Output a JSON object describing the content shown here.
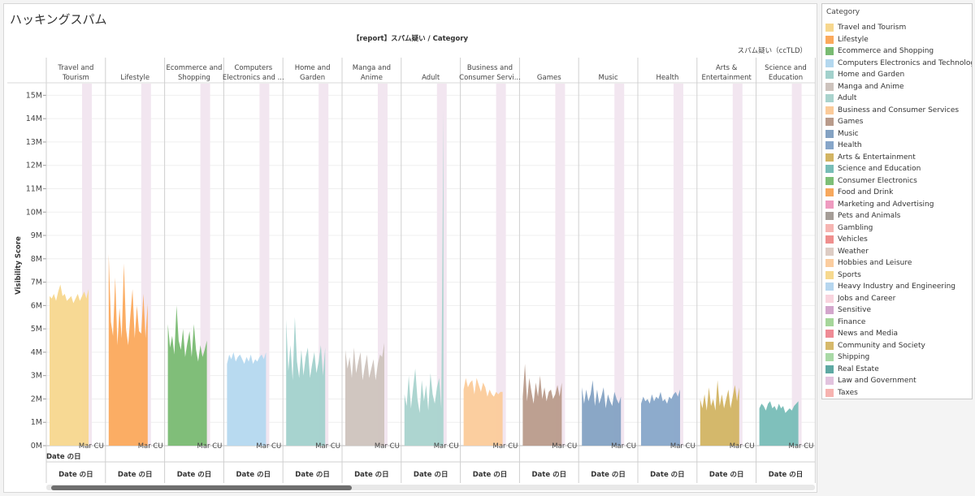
{
  "page": {
    "title": "ハッキングスパム",
    "row_header": "Date の日",
    "legend_title": "Category"
  },
  "colors": {
    "Travel and Tourism": "#f7d78e",
    "Lifestyle": "#fba95c",
    "Ecommerce and Shopping": "#79bb72",
    "Computers Electronics and Technology": "#b4d8ef",
    "Home and Garden": "#a2d1cc",
    "Manga and Anime": "#cdc3bd",
    "Adult": "#a9d3cd",
    "Business and Consumer Services": "#fbcb9a",
    "Games": "#b99b8b",
    "Music": "#84a2c3",
    "Health": "#87a6c9",
    "Arts & Entertainment": "#d2b463",
    "Science and Education": "#78bdb7",
    "Consumer Electronics": "#7ebf77",
    "Food and Drink": "#f7a85d",
    "Marketing and Advertising": "#ef9bc0",
    "Pets and Animals": "#a59d97",
    "Gambling": "#f6b5b2",
    "Vehicles": "#ef8f8e",
    "Weather": "#ddccc4",
    "Hobbies and Leisure": "#fbcd9f",
    "Sports": "#f7d98f",
    "Heavy Industry and Engineering": "#b6d6ef",
    "Jobs and Career": "#f9d4de",
    "Sensitive": "#d3a6cc",
    "Finance": "#a6d69a",
    "News and Media": "#ef8b95",
    "Community and Society": "#d6b96b",
    "Shipping": "#a9d9a6",
    "Real Estate": "#5ea9a3",
    "Law and Government": "#e2c3de",
    "Taxes": "#f7b3b0"
  },
  "legend": [
    "Travel and Tourism",
    "Lifestyle",
    "Ecommerce and Shopping",
    "Computers Electronics and Technology",
    "Home and Garden",
    "Manga and Anime",
    "Adult",
    "Business and Consumer Services",
    "Games",
    "Music",
    "Health",
    "Arts & Entertainment",
    "Science and Education",
    "Consumer Electronics",
    "Food and Drink",
    "Marketing and Advertising",
    "Pets and Animals",
    "Gambling",
    "Vehicles",
    "Weather",
    "Hobbies and Leisure",
    "Sports",
    "Heavy Industry and Engineering",
    "Jobs and Career",
    "Sensitive",
    "Finance",
    "News and Media",
    "Community and Society",
    "Shipping",
    "Real Estate",
    "Law and Government",
    "Taxes"
  ],
  "chart_data": {
    "type": "area",
    "header": "【report】スパム疑い / Category",
    "column_field": "スパム疑い（ccTLD）",
    "ylabel": "Visibility Score",
    "xlabel": "Date の日",
    "ylim": [
      0,
      15500000
    ],
    "y_ticks": [
      "0M",
      "1M",
      "2M",
      "3M",
      "4M",
      "5M",
      "6M",
      "7M",
      "8M",
      "9M",
      "10M",
      "11M",
      "12M",
      "13M",
      "14M",
      "15M"
    ],
    "x_tick_label": "Mar CU",
    "highlight_band_color": "#f2e6f0",
    "panels": [
      {
        "category": "Travel and Tourism",
        "label": [
          "Travel and",
          "Tourism"
        ],
        "values": [
          6.4,
          6.3,
          6.5,
          6.2,
          6.6,
          6.9,
          6.4,
          6.5,
          6.2,
          6.3,
          6.4,
          6.1,
          6.3,
          6.5,
          6.2,
          6.4,
          6.6,
          6.3,
          6.7
        ]
      },
      {
        "category": "Lifestyle",
        "label": [
          "Lifestyle"
        ],
        "values": [
          8.2,
          5.3,
          4.7,
          7.2,
          4.3,
          5.9,
          4.6,
          7.8,
          5.0,
          4.3,
          5.6,
          6.7,
          4.6,
          6.0,
          4.9,
          4.8,
          6.5,
          4.6,
          6.1
        ]
      },
      {
        "category": "Ecommerce and Shopping",
        "label": [
          "Ecommerce and",
          "Shopping"
        ],
        "values": [
          5.2,
          4.2,
          4.7,
          3.9,
          6.0,
          4.5,
          4.1,
          5.0,
          3.8,
          4.4,
          4.9,
          3.8,
          5.2,
          4.1,
          3.6,
          4.3,
          3.8,
          4.1,
          4.5
        ]
      },
      {
        "category": "Computers Electronics and Technology",
        "label": [
          "Computers",
          "Electronics and ..."
        ],
        "values": [
          3.5,
          3.9,
          3.7,
          4.0,
          3.6,
          3.8,
          3.9,
          3.7,
          3.5,
          3.8,
          3.6,
          3.9,
          3.5,
          3.7,
          3.6,
          3.8,
          3.9,
          3.7,
          4.0
        ]
      },
      {
        "category": "Home and Garden",
        "label": [
          "Home and",
          "Garden"
        ],
        "values": [
          5.4,
          3.2,
          4.3,
          2.8,
          5.5,
          3.6,
          2.9,
          4.1,
          3.0,
          3.8,
          4.2,
          2.9,
          3.5,
          4.0,
          3.1,
          3.6,
          4.3,
          3.0,
          4.2
        ]
      },
      {
        "category": "Manga and Anime",
        "label": [
          "Manga and",
          "Anime"
        ],
        "values": [
          4.1,
          3.3,
          3.8,
          2.9,
          4.2,
          3.1,
          3.6,
          4.0,
          2.8,
          3.4,
          3.9,
          2.9,
          3.3,
          3.7,
          2.8,
          3.5,
          3.9,
          3.8,
          4.4
        ]
      },
      {
        "category": "Adult",
        "label": [
          "Adult"
        ],
        "values": [
          2.2,
          1.7,
          3.0,
          1.6,
          2.5,
          3.3,
          2.0,
          1.4,
          2.8,
          1.9,
          2.6,
          1.5,
          3.1,
          2.2,
          1.8,
          2.5,
          2.9,
          1.6,
          14.4
        ]
      },
      {
        "category": "Business and Consumer Services",
        "label": [
          "Business and",
          "Consumer Servi..."
        ],
        "values": [
          2.4,
          2.9,
          2.5,
          2.7,
          2.8,
          2.2,
          2.9,
          2.6,
          2.3,
          2.7,
          2.5,
          2.1,
          2.4,
          2.2,
          2.1,
          2.3,
          2.2,
          2.3,
          2.3
        ]
      },
      {
        "category": "Games",
        "label": [
          "Games"
        ],
        "values": [
          2.1,
          3.5,
          1.9,
          2.9,
          2.3,
          1.8,
          2.7,
          2.1,
          3.0,
          2.0,
          2.5,
          1.9,
          2.3,
          2.4,
          2.0,
          2.2,
          2.6,
          2.1,
          2.7
        ]
      },
      {
        "category": "Music",
        "label": [
          "Music"
        ],
        "values": [
          2.5,
          1.8,
          2.4,
          1.9,
          2.2,
          2.8,
          1.7,
          2.4,
          1.8,
          2.1,
          2.5,
          1.6,
          2.2,
          1.9,
          1.7,
          2.3,
          2.0,
          1.8,
          2.1
        ]
      },
      {
        "category": "Health",
        "label": [
          "Health"
        ],
        "values": [
          1.8,
          2.1,
          1.9,
          2.0,
          1.8,
          2.2,
          1.9,
          2.1,
          2.0,
          2.3,
          1.9,
          2.0,
          1.8,
          2.1,
          2.0,
          2.2,
          2.3,
          2.1,
          2.4
        ]
      },
      {
        "category": "Arts & Entertainment",
        "label": [
          "Arts &",
          "Entertainment"
        ],
        "values": [
          2.0,
          1.6,
          2.2,
          1.5,
          2.5,
          1.7,
          2.0,
          1.5,
          2.8,
          1.7,
          2.2,
          1.6,
          2.0,
          2.4,
          1.6,
          2.1,
          2.6,
          1.9,
          2.5
        ]
      },
      {
        "category": "Science and Education",
        "label": [
          "Science and",
          "Education"
        ],
        "values": [
          1.6,
          1.8,
          1.7,
          1.5,
          1.8,
          1.9,
          1.6,
          1.7,
          1.5,
          1.8,
          1.6,
          1.7,
          1.4,
          1.5,
          1.6,
          1.5,
          1.7,
          1.8,
          1.9
        ]
      }
    ]
  }
}
